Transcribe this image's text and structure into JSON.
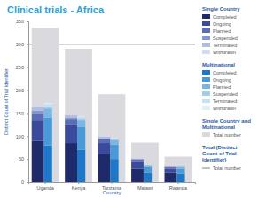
{
  "chart_data": {
    "type": "bar",
    "stacked": true,
    "grid": false,
    "title": "Clinical trials - Africa",
    "x_label": "Country",
    "y_label": "Distinct Count of Trial Identifier",
    "categories": [
      "Uganda",
      "Kenya",
      "Tanzania",
      "Malawi",
      "Rwanda"
    ],
    "ylim": [
      0,
      350
    ],
    "yticks": [
      0,
      50,
      100,
      150,
      200,
      250,
      300,
      350
    ],
    "groups": [
      {
        "name": "Single Country",
        "series": [
          {
            "name": "Completed",
            "color": "#1f2a6b",
            "values": [
              90,
              85,
              60,
              30,
              20
            ]
          },
          {
            "name": "Ongoing",
            "color": "#3b4a9a",
            "values": [
              45,
              40,
              25,
              15,
              10
            ]
          },
          {
            "name": "Planned",
            "color": "#5c6db8",
            "values": [
              15,
              12,
              8,
              4,
              3
            ]
          },
          {
            "name": "Suspended",
            "color": "#8896d0",
            "values": [
              5,
              3,
              2,
              1,
              1
            ]
          },
          {
            "name": "Terminated",
            "color": "#b3bde3",
            "values": [
              8,
              5,
              4,
              1,
              1
            ]
          },
          {
            "name": "Withdrawn",
            "color": "#d6dcf0",
            "values": [
              3,
              2,
              2,
              1,
              1
            ]
          }
        ]
      },
      {
        "name": "Multinational",
        "series": [
          {
            "name": "Completed",
            "color": "#1e78c8",
            "values": [
              80,
              70,
              50,
              20,
              18
            ]
          },
          {
            "name": "Ongoing",
            "color": "#4b9ad8",
            "values": [
              60,
              50,
              32,
              13,
              12
            ]
          },
          {
            "name": "Planned",
            "color": "#79b6e3",
            "values": [
              20,
              15,
              9,
              3,
              4
            ]
          },
          {
            "name": "Suspended",
            "color": "#a3cdec",
            "values": [
              4,
              3,
              2,
              1,
              1
            ]
          },
          {
            "name": "Terminated",
            "color": "#c7e0f3",
            "values": [
              6,
              4,
              2,
              1,
              1
            ]
          },
          {
            "name": "Withdrawn",
            "color": "#e2eff9",
            "values": [
              2,
              1,
              1,
              0,
              0
            ]
          }
        ]
      },
      {
        "name": "Single Country and Multinational",
        "series": [
          {
            "name": "Total number",
            "color": "#d9d9de",
            "values": [
              335,
              290,
              191,
              86,
              55
            ]
          }
        ]
      },
      {
        "name": "Total (Distinct Count of Trial Identifier)",
        "series": [
          {
            "name": "Total number",
            "type": "line",
            "color": "#6b6b6b",
            "value": 300
          }
        ]
      }
    ]
  }
}
